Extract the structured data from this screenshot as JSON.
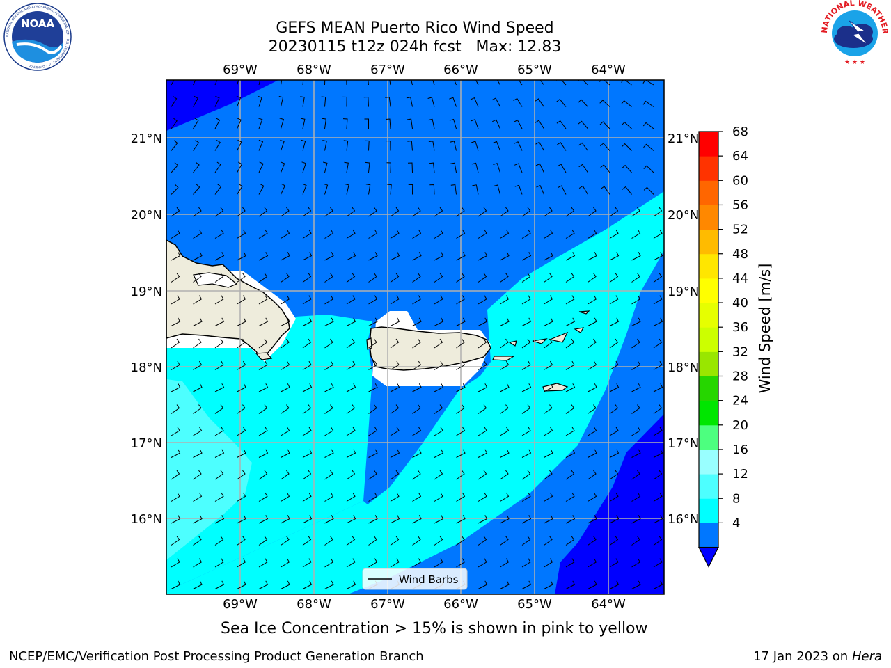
{
  "header": {
    "title_line1": "GEFS MEAN Puerto Rico Wind Speed",
    "title_line2": "20230115 t12z 024h fcst   Max: 12.83"
  },
  "logos": {
    "noaa_text": "NOAA",
    "noaa_ring_text": "NATIONAL OCEANIC AND ATMOSPHERIC ADMINISTRATION · U.S. DEPARTMENT OF COMMERCE",
    "nws_ring_text": "NATIONAL WEATHER SERVICE"
  },
  "map": {
    "lon_labels": [
      "69°W",
      "68°W",
      "67°W",
      "66°W",
      "65°W",
      "64°W"
    ],
    "lat_labels": [
      "21°N",
      "20°N",
      "19°N",
      "18°N",
      "17°N",
      "16°N"
    ],
    "legend_label": "Wind Barbs",
    "colors": {
      "land": "#eeecdc",
      "band_0_4": "#0000ff",
      "band_4_8": "#0077ff",
      "band_8_12": "#00ffff",
      "band_12_16": "#4dffff",
      "band_16_20": "#99ffff",
      "gridline": "#b0b0b0"
    }
  },
  "colorbar": {
    "label": "Wind Speed [m/s]",
    "ticks": [
      "68",
      "64",
      "60",
      "56",
      "52",
      "48",
      "44",
      "40",
      "36",
      "32",
      "28",
      "24",
      "20",
      "16",
      "12",
      "8",
      "4"
    ],
    "colors_bottom_to_top": [
      "#0077ff",
      "#00ffff",
      "#4dffff",
      "#99ffff",
      "#4dff7f",
      "#00e600",
      "#26d600",
      "#99e600",
      "#ccff00",
      "#e6ff00",
      "#ffff00",
      "#ffe600",
      "#ffbb00",
      "#ff8800",
      "#ff6600",
      "#ff3300",
      "#ff0000"
    ],
    "extend_color": "#0000ff"
  },
  "caption": "Sea Ice Concentration > 15% is shown in pink to yellow",
  "footer": {
    "left": "NCEP/EMC/Verification Post Processing Product Generation Branch",
    "right_prefix": "17 Jan 2023 on ",
    "right_host": "Hera"
  }
}
